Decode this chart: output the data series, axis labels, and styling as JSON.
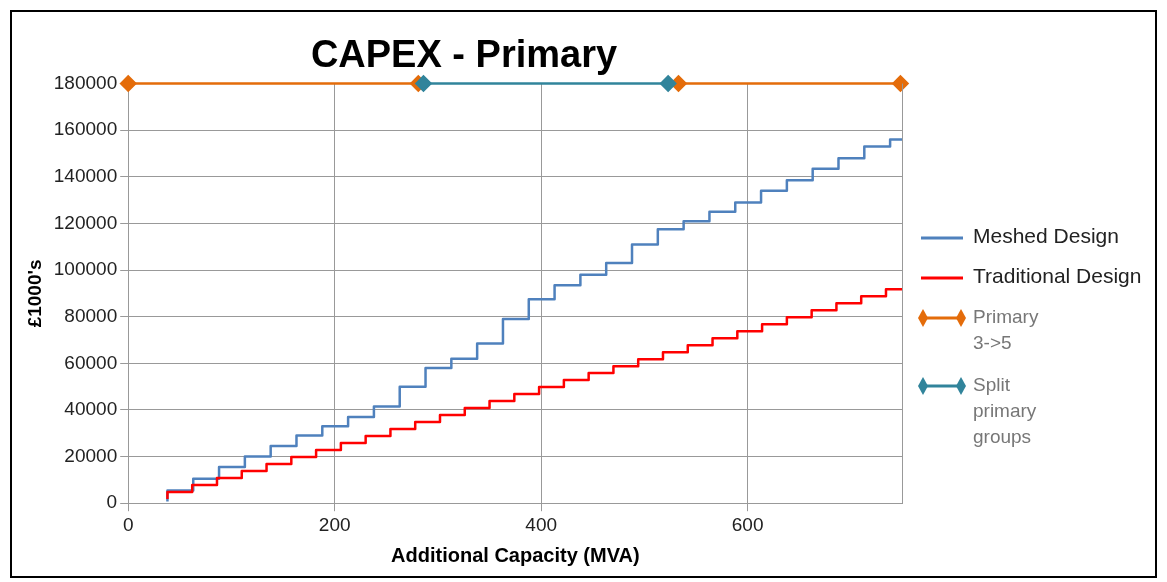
{
  "chart_data": {
    "type": "step",
    "title": "CAPEX - Primary",
    "xlabel": "Additional Capacity (MVA)",
    "ylabel": "£1000's",
    "xlim": [
      0,
      750
    ],
    "xticks": [
      0,
      200,
      400,
      600
    ],
    "ylim": [
      0,
      180000
    ],
    "yticks": [
      0,
      20000,
      40000,
      60000,
      80000,
      100000,
      120000,
      140000,
      160000,
      180000
    ],
    "grid": true,
    "legend": "right",
    "series": [
      {
        "name": "Meshed Design",
        "color": "#4f81bd",
        "x": [
          38,
          63,
          88,
          113,
          138,
          163,
          188,
          213,
          238,
          263,
          288,
          313,
          338,
          363,
          388,
          413,
          438,
          463,
          488,
          513,
          538,
          563,
          588,
          613,
          638,
          663,
          688,
          713,
          738,
          750
        ],
        "values": [
          700,
          5500,
          10500,
          15500,
          20000,
          24500,
          29000,
          33000,
          37000,
          41500,
          50000,
          58000,
          62000,
          68500,
          79000,
          87500,
          93500,
          98000,
          103000,
          111000,
          117500,
          121000,
          125000,
          129000,
          134000,
          138500,
          143500,
          148000,
          153000,
          156000
        ]
      },
      {
        "name": "Traditional Design",
        "color": "#ff0000",
        "x": [
          38,
          62,
          86,
          110,
          134,
          158,
          182,
          206,
          230,
          254,
          278,
          302,
          326,
          350,
          374,
          398,
          422,
          446,
          470,
          494,
          518,
          542,
          566,
          590,
          614,
          638,
          662,
          686,
          710,
          734,
          750
        ],
        "values": [
          1800,
          4800,
          7800,
          10800,
          13800,
          16800,
          19800,
          22800,
          25800,
          28800,
          31800,
          34800,
          37800,
          40800,
          43800,
          46800,
          49800,
          52800,
          55800,
          58800,
          61800,
          64800,
          67800,
          70800,
          73800,
          76800,
          79800,
          82800,
          85800,
          88800,
          91800
        ]
      },
      {
        "name": "Primary 3->5",
        "type": "line",
        "marker": "diamond",
        "color": "#e46c0a",
        "x": [
          0,
          281,
          null,
          533,
          748
        ],
        "values": [
          180000,
          180000,
          null,
          180000,
          180000
        ]
      },
      {
        "name": "Split primary groups",
        "type": "line",
        "marker": "diamond",
        "color": "#31849b",
        "x": [
          286,
          523
        ],
        "values": [
          180000,
          180000
        ]
      }
    ]
  }
}
